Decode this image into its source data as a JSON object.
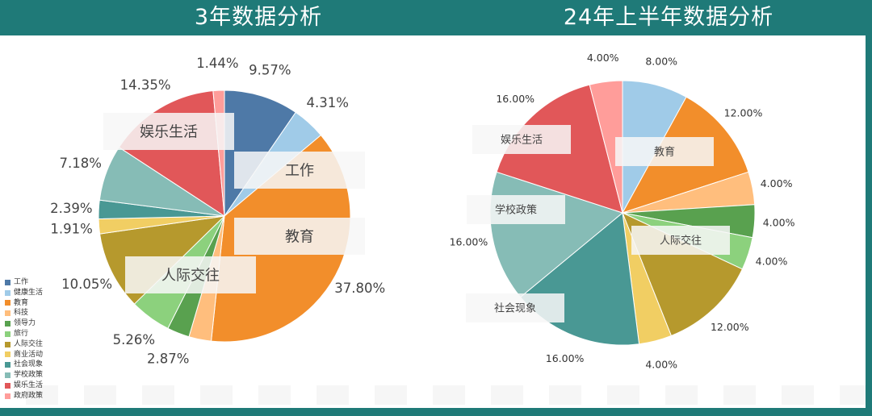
{
  "chart_data": [
    {
      "type": "pie",
      "title": "3年数据分析",
      "categories": [
        "工作",
        "健康生活",
        "教育",
        "科技",
        "领导力",
        "旅行",
        "人际交往",
        "商业活动",
        "社会现象",
        "学校政策",
        "娱乐生活",
        "政府政策"
      ],
      "values": [
        9.57,
        4.31,
        37.8,
        2.87,
        2.87,
        5.26,
        10.05,
        1.91,
        2.39,
        7.18,
        14.35,
        1.44
      ],
      "value_labels": [
        "9.57%",
        "4.31%",
        "37.80%",
        "",
        "2.87%",
        "5.26%",
        "10.05%",
        "1.91%",
        "2.39%",
        "7.18%",
        "14.35%",
        "1.44%"
      ],
      "overlay_labels": [
        "工作",
        "教育",
        "人际交往",
        "娱乐生活"
      ],
      "legend_placement": "bottom-left"
    },
    {
      "type": "pie",
      "title": "24年上半年数据分析",
      "categories": [
        "健康生活",
        "教育",
        "科技",
        "领导力",
        "旅行",
        "人际交往",
        "商业活动",
        "社会现象",
        "学校政策",
        "娱乐生活",
        "政府政策"
      ],
      "values": [
        8.0,
        12.0,
        4.0,
        4.0,
        4.0,
        12.0,
        4.0,
        16.0,
        16.0,
        16.0,
        4.0
      ],
      "value_labels": [
        "8.00%",
        "12.00%",
        "4.00%",
        "4.00%",
        "4.00%",
        "12.00%",
        "4.00%",
        "16.00%",
        "16.00%",
        "16.00%",
        "4.00%"
      ],
      "overlay_labels": [
        "教育",
        "人际交往",
        "社会现象",
        "学校政策",
        "娱乐生活"
      ]
    }
  ],
  "legend": [
    {
      "label": "工作",
      "color": "#4e79a7"
    },
    {
      "label": "健康生活",
      "color": "#a0cbe8"
    },
    {
      "label": "教育",
      "color": "#f28e2b"
    },
    {
      "label": "科技",
      "color": "#ffbe7d"
    },
    {
      "label": "领导力",
      "color": "#59a14f"
    },
    {
      "label": "旅行",
      "color": "#8cd17d"
    },
    {
      "label": "人际交往",
      "color": "#b6992d"
    },
    {
      "label": "商业活动",
      "color": "#f1ce63"
    },
    {
      "label": "社会现象",
      "color": "#499894"
    },
    {
      "label": "学校政策",
      "color": "#86bcb6"
    },
    {
      "label": "娱乐生活",
      "color": "#e15759"
    },
    {
      "label": "政府政策",
      "color": "#ff9d9a"
    }
  ]
}
